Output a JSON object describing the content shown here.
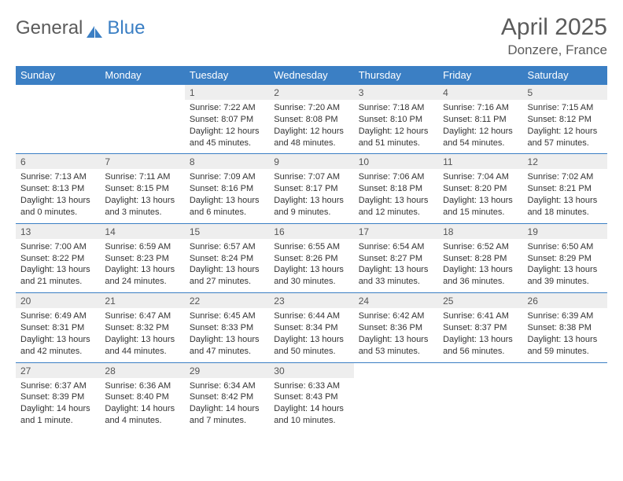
{
  "logo": {
    "g_text": "General",
    "b_text": "Blue"
  },
  "title": "April 2025",
  "location": "Donzere, France",
  "colors": {
    "header_bg": "#3b7fc4",
    "header_fg": "#ffffff",
    "daynum_bg": "#eeeeee",
    "border": "#3b7fc4",
    "text": "#333333",
    "muted": "#5b5b5b"
  },
  "day_names": [
    "Sunday",
    "Monday",
    "Tuesday",
    "Wednesday",
    "Thursday",
    "Friday",
    "Saturday"
  ],
  "weeks": [
    [
      null,
      null,
      {
        "n": "1",
        "sr": "Sunrise: 7:22 AM",
        "ss": "Sunset: 8:07 PM",
        "dl1": "Daylight: 12 hours",
        "dl2": "and 45 minutes."
      },
      {
        "n": "2",
        "sr": "Sunrise: 7:20 AM",
        "ss": "Sunset: 8:08 PM",
        "dl1": "Daylight: 12 hours",
        "dl2": "and 48 minutes."
      },
      {
        "n": "3",
        "sr": "Sunrise: 7:18 AM",
        "ss": "Sunset: 8:10 PM",
        "dl1": "Daylight: 12 hours",
        "dl2": "and 51 minutes."
      },
      {
        "n": "4",
        "sr": "Sunrise: 7:16 AM",
        "ss": "Sunset: 8:11 PM",
        "dl1": "Daylight: 12 hours",
        "dl2": "and 54 minutes."
      },
      {
        "n": "5",
        "sr": "Sunrise: 7:15 AM",
        "ss": "Sunset: 8:12 PM",
        "dl1": "Daylight: 12 hours",
        "dl2": "and 57 minutes."
      }
    ],
    [
      {
        "n": "6",
        "sr": "Sunrise: 7:13 AM",
        "ss": "Sunset: 8:13 PM",
        "dl1": "Daylight: 13 hours",
        "dl2": "and 0 minutes."
      },
      {
        "n": "7",
        "sr": "Sunrise: 7:11 AM",
        "ss": "Sunset: 8:15 PM",
        "dl1": "Daylight: 13 hours",
        "dl2": "and 3 minutes."
      },
      {
        "n": "8",
        "sr": "Sunrise: 7:09 AM",
        "ss": "Sunset: 8:16 PM",
        "dl1": "Daylight: 13 hours",
        "dl2": "and 6 minutes."
      },
      {
        "n": "9",
        "sr": "Sunrise: 7:07 AM",
        "ss": "Sunset: 8:17 PM",
        "dl1": "Daylight: 13 hours",
        "dl2": "and 9 minutes."
      },
      {
        "n": "10",
        "sr": "Sunrise: 7:06 AM",
        "ss": "Sunset: 8:18 PM",
        "dl1": "Daylight: 13 hours",
        "dl2": "and 12 minutes."
      },
      {
        "n": "11",
        "sr": "Sunrise: 7:04 AM",
        "ss": "Sunset: 8:20 PM",
        "dl1": "Daylight: 13 hours",
        "dl2": "and 15 minutes."
      },
      {
        "n": "12",
        "sr": "Sunrise: 7:02 AM",
        "ss": "Sunset: 8:21 PM",
        "dl1": "Daylight: 13 hours",
        "dl2": "and 18 minutes."
      }
    ],
    [
      {
        "n": "13",
        "sr": "Sunrise: 7:00 AM",
        "ss": "Sunset: 8:22 PM",
        "dl1": "Daylight: 13 hours",
        "dl2": "and 21 minutes."
      },
      {
        "n": "14",
        "sr": "Sunrise: 6:59 AM",
        "ss": "Sunset: 8:23 PM",
        "dl1": "Daylight: 13 hours",
        "dl2": "and 24 minutes."
      },
      {
        "n": "15",
        "sr": "Sunrise: 6:57 AM",
        "ss": "Sunset: 8:24 PM",
        "dl1": "Daylight: 13 hours",
        "dl2": "and 27 minutes."
      },
      {
        "n": "16",
        "sr": "Sunrise: 6:55 AM",
        "ss": "Sunset: 8:26 PM",
        "dl1": "Daylight: 13 hours",
        "dl2": "and 30 minutes."
      },
      {
        "n": "17",
        "sr": "Sunrise: 6:54 AM",
        "ss": "Sunset: 8:27 PM",
        "dl1": "Daylight: 13 hours",
        "dl2": "and 33 minutes."
      },
      {
        "n": "18",
        "sr": "Sunrise: 6:52 AM",
        "ss": "Sunset: 8:28 PM",
        "dl1": "Daylight: 13 hours",
        "dl2": "and 36 minutes."
      },
      {
        "n": "19",
        "sr": "Sunrise: 6:50 AM",
        "ss": "Sunset: 8:29 PM",
        "dl1": "Daylight: 13 hours",
        "dl2": "and 39 minutes."
      }
    ],
    [
      {
        "n": "20",
        "sr": "Sunrise: 6:49 AM",
        "ss": "Sunset: 8:31 PM",
        "dl1": "Daylight: 13 hours",
        "dl2": "and 42 minutes."
      },
      {
        "n": "21",
        "sr": "Sunrise: 6:47 AM",
        "ss": "Sunset: 8:32 PM",
        "dl1": "Daylight: 13 hours",
        "dl2": "and 44 minutes."
      },
      {
        "n": "22",
        "sr": "Sunrise: 6:45 AM",
        "ss": "Sunset: 8:33 PM",
        "dl1": "Daylight: 13 hours",
        "dl2": "and 47 minutes."
      },
      {
        "n": "23",
        "sr": "Sunrise: 6:44 AM",
        "ss": "Sunset: 8:34 PM",
        "dl1": "Daylight: 13 hours",
        "dl2": "and 50 minutes."
      },
      {
        "n": "24",
        "sr": "Sunrise: 6:42 AM",
        "ss": "Sunset: 8:36 PM",
        "dl1": "Daylight: 13 hours",
        "dl2": "and 53 minutes."
      },
      {
        "n": "25",
        "sr": "Sunrise: 6:41 AM",
        "ss": "Sunset: 8:37 PM",
        "dl1": "Daylight: 13 hours",
        "dl2": "and 56 minutes."
      },
      {
        "n": "26",
        "sr": "Sunrise: 6:39 AM",
        "ss": "Sunset: 8:38 PM",
        "dl1": "Daylight: 13 hours",
        "dl2": "and 59 minutes."
      }
    ],
    [
      {
        "n": "27",
        "sr": "Sunrise: 6:37 AM",
        "ss": "Sunset: 8:39 PM",
        "dl1": "Daylight: 14 hours",
        "dl2": "and 1 minute."
      },
      {
        "n": "28",
        "sr": "Sunrise: 6:36 AM",
        "ss": "Sunset: 8:40 PM",
        "dl1": "Daylight: 14 hours",
        "dl2": "and 4 minutes."
      },
      {
        "n": "29",
        "sr": "Sunrise: 6:34 AM",
        "ss": "Sunset: 8:42 PM",
        "dl1": "Daylight: 14 hours",
        "dl2": "and 7 minutes."
      },
      {
        "n": "30",
        "sr": "Sunrise: 6:33 AM",
        "ss": "Sunset: 8:43 PM",
        "dl1": "Daylight: 14 hours",
        "dl2": "and 10 minutes."
      },
      null,
      null,
      null
    ]
  ]
}
